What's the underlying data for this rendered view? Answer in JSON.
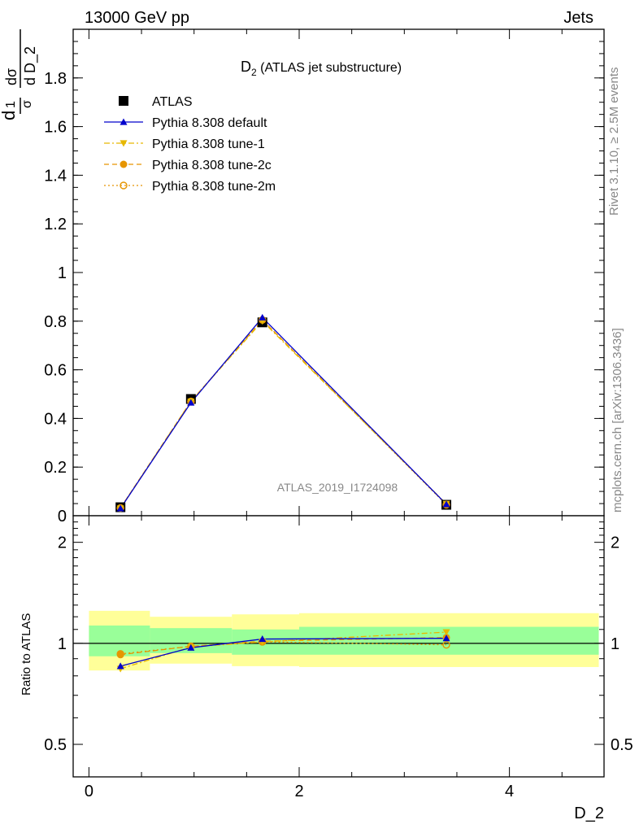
{
  "header": {
    "left": "13000 GeV pp",
    "right": "Jets"
  },
  "side_text": {
    "version": "Rivet 3.1.10, ≥ 2.5M events",
    "source": "mcplots.cern.ch [arXiv:1306.3436]"
  },
  "chart_data": [
    {
      "type": "line",
      "title": "D",
      "title_sub": "2",
      "title_rest": " (ATLAS jet substructure)",
      "watermark": "ATLAS_2019_I1724098",
      "ylabel": "1/σ dσ/d D_2",
      "ylim": [
        0,
        2.0
      ],
      "yticks": [
        {
          "v": 0.2,
          "label": "0.2"
        },
        {
          "v": 0.4,
          "label": "0.4"
        },
        {
          "v": 0.6,
          "label": "0.6"
        },
        {
          "v": 0.8,
          "label": "0.8"
        },
        {
          "v": 1.0,
          "label": "1"
        },
        {
          "v": 1.2,
          "label": "1.2"
        },
        {
          "v": 1.4,
          "label": "1.4"
        },
        {
          "v": 1.6,
          "label": "1.6"
        },
        {
          "v": 1.8,
          "label": "1.8"
        }
      ],
      "x": [
        0.3,
        0.97,
        1.65,
        3.4
      ],
      "series": [
        {
          "name": "ATLAS",
          "marker": "square",
          "color": "#000000",
          "values": [
            0.035,
            0.48,
            0.795,
            0.045
          ]
        },
        {
          "name": "Pythia 8.308 default",
          "marker": "triangle-up",
          "color": "#0000cc",
          "line": "solid",
          "values": [
            0.03,
            0.465,
            0.815,
            0.047
          ]
        },
        {
          "name": "Pythia 8.308 tune-1",
          "marker": "triangle-down",
          "color": "#e6b800",
          "line": "dashdot",
          "values": [
            0.03,
            0.47,
            0.8,
            0.049
          ]
        },
        {
          "name": "Pythia 8.308 tune-2c",
          "marker": "circle",
          "color": "#e69500",
          "line": "dashed",
          "values": [
            0.032,
            0.47,
            0.805,
            0.047
          ]
        },
        {
          "name": "Pythia 8.308 tune-2m",
          "marker": "circle-open",
          "color": "#e69500",
          "line": "dotted",
          "values": [
            0.032,
            0.47,
            0.805,
            0.045
          ]
        }
      ]
    },
    {
      "type": "line",
      "xlabel": "D_2",
      "ylabel": "Ratio to ATLAS",
      "ylim": [
        0.4,
        2.4
      ],
      "log_y": true,
      "yticks": [
        {
          "v": 0.5,
          "label": "0.5"
        },
        {
          "v": 1.0,
          "label": "1"
        },
        {
          "v": 2.0,
          "label": "2"
        }
      ],
      "xlim": [
        -0.15,
        4.9
      ],
      "xticks": [
        {
          "v": 0,
          "label": "0"
        },
        {
          "v": 2,
          "label": "2"
        },
        {
          "v": 4,
          "label": "4"
        }
      ],
      "bands": [
        {
          "x0": 0.0,
          "x1": 0.58,
          "inner": [
            0.915,
            1.13
          ],
          "outer": [
            0.83,
            1.25
          ]
        },
        {
          "x0": 0.58,
          "x1": 1.36,
          "inner": [
            0.935,
            1.11
          ],
          "outer": [
            0.87,
            1.2
          ]
        },
        {
          "x0": 1.36,
          "x1": 2.0,
          "inner": [
            0.925,
            1.1
          ],
          "outer": [
            0.855,
            1.22
          ]
        },
        {
          "x0": 2.0,
          "x1": 4.85,
          "inner": [
            0.925,
            1.12
          ],
          "outer": [
            0.85,
            1.23
          ]
        }
      ],
      "x": [
        0.3,
        0.97,
        1.65,
        3.4
      ],
      "series": [
        {
          "name": "Pythia 8.308 default",
          "marker": "triangle-up",
          "color": "#0000cc",
          "line": "solid",
          "values": [
            0.855,
            0.97,
            1.03,
            1.035
          ]
        },
        {
          "name": "Pythia 8.308 tune-1",
          "marker": "triangle-down",
          "color": "#e6b800",
          "line": "dashdot",
          "values": [
            0.84,
            0.975,
            1.01,
            1.08
          ]
        },
        {
          "name": "Pythia 8.308 tune-2c",
          "marker": "circle",
          "color": "#e69500",
          "line": "dashed",
          "values": [
            0.925,
            0.98,
            1.015,
            1.04
          ]
        },
        {
          "name": "Pythia 8.308 tune-2m",
          "marker": "circle-open",
          "color": "#e69500",
          "line": "dotted",
          "values": [
            0.93,
            0.98,
            1.01,
            0.99
          ]
        }
      ]
    }
  ]
}
